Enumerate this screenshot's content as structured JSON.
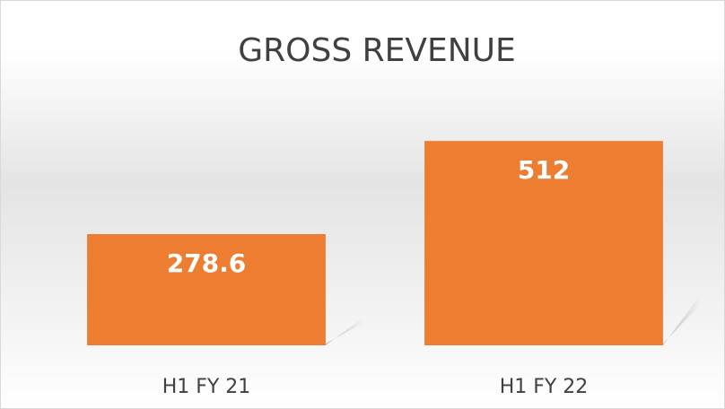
{
  "chart_data": {
    "type": "bar",
    "title": "GROSS REVENUE",
    "categories": [
      "H1 FY 21",
      "H1 FY 22"
    ],
    "values": [
      278.6,
      512
    ],
    "color": "#ed7d31",
    "ylim": [
      0,
      600
    ]
  }
}
